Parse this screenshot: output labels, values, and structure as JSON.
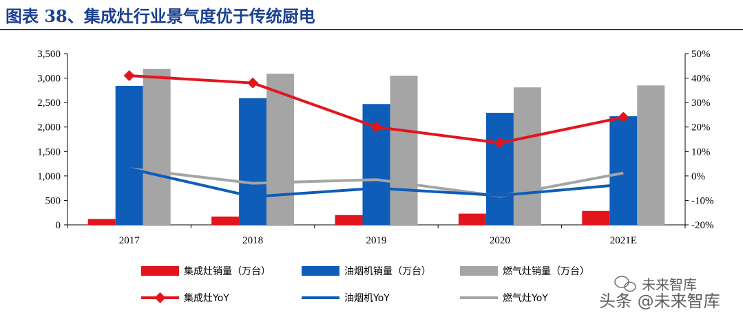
{
  "header": {
    "title": "图表 38、集成灶行业景气度优于传统厨电"
  },
  "chart_data": {
    "type": "bar",
    "categories": [
      "2017",
      "2018",
      "2019",
      "2020",
      "2021E"
    ],
    "series": [
      {
        "name": "集成灶销量（万台）",
        "kind": "bar",
        "axis": "left",
        "color": "#e3151c",
        "values": [
          120,
          170,
          200,
          230,
          285
        ]
      },
      {
        "name": "油烟机销量（万台）",
        "kind": "bar",
        "axis": "left",
        "color": "#0e5db8",
        "values": [
          2840,
          2590,
          2470,
          2290,
          2220
        ]
      },
      {
        "name": "燃气灶销量（万台）",
        "kind": "bar",
        "axis": "left",
        "color": "#a5a5a5",
        "values": [
          3190,
          3090,
          3050,
          2810,
          2850
        ]
      },
      {
        "name": "集成灶YoY",
        "kind": "line",
        "axis": "right",
        "color": "#e3151c",
        "marker": "diamond",
        "values": [
          41,
          38,
          20,
          13.5,
          24
        ]
      },
      {
        "name": "油烟机YoY",
        "kind": "line",
        "axis": "right",
        "color": "#0e5db8",
        "marker": "none",
        "values": [
          3,
          -8.5,
          -5,
          -8,
          -3.5
        ]
      },
      {
        "name": "燃气灶YoY",
        "kind": "line",
        "axis": "right",
        "color": "#a5a5a5",
        "marker": "none",
        "values": [
          3,
          -3,
          -1.5,
          -8.3,
          1.2
        ]
      }
    ],
    "left_axis": {
      "ylim": [
        0,
        3500
      ],
      "ticks": [
        0,
        500,
        1000,
        1500,
        2000,
        2500,
        3000,
        3500
      ],
      "tick_labels": [
        "0",
        "500",
        "1,000",
        "1,500",
        "2,000",
        "2,500",
        "3,000",
        "3,500"
      ]
    },
    "right_axis": {
      "ylim": [
        -20,
        50
      ],
      "ticks": [
        -20,
        -10,
        0,
        10,
        20,
        30,
        40,
        50
      ],
      "tick_labels": [
        "-20%",
        "-10%",
        "0%",
        "10%",
        "20%",
        "30%",
        "40%",
        "50%"
      ]
    },
    "legend_position": "bottom"
  },
  "watermark": {
    "line1": "未来智库",
    "line2": "头条 @未来智库"
  }
}
